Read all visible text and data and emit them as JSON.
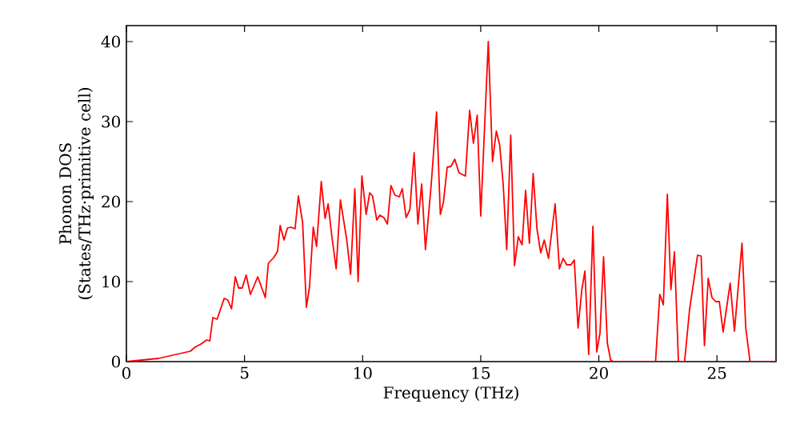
{
  "chart_data": {
    "type": "line",
    "xlabel": "Frequency (THz)",
    "ylabel": "Phonon DOS (States/THz·primitive cell)",
    "xlim": [
      0,
      27.5
    ],
    "ylim": [
      0,
      42
    ],
    "xticks": [
      0,
      5,
      10,
      15,
      20,
      25
    ],
    "yticks": [
      0,
      10,
      20,
      30,
      40
    ],
    "marker": "none",
    "line_style": "solid",
    "series": [
      {
        "color": "#ff0000",
        "x": [
          0,
          1.36,
          2.26,
          2.71,
          2.9,
          3.16,
          3.39,
          3.53,
          3.66,
          3.84,
          4.14,
          4.29,
          4.45,
          4.61,
          4.75,
          4.9,
          5.07,
          5.25,
          5.56,
          5.88,
          6.01,
          6.24,
          6.4,
          6.51,
          6.67,
          6.82,
          6.96,
          7.14,
          7.28,
          7.46,
          7.62,
          7.75,
          7.91,
          8.05,
          8.25,
          8.41,
          8.54,
          8.7,
          8.88,
          9.06,
          9.33,
          9.49,
          9.67,
          9.81,
          9.97,
          10.15,
          10.3,
          10.42,
          10.6,
          10.73,
          10.9,
          11.05,
          11.2,
          11.37,
          11.55,
          11.68,
          11.84,
          12.0,
          12.18,
          12.34,
          12.5,
          12.66,
          12.9,
          13.13,
          13.29,
          13.42,
          13.58,
          13.74,
          13.9,
          14.08,
          14.35,
          14.53,
          14.69,
          14.85,
          15.0,
          15.32,
          15.5,
          15.66,
          15.8,
          15.95,
          16.1,
          16.27,
          16.43,
          16.59,
          16.75,
          16.9,
          17.06,
          17.22,
          17.38,
          17.54,
          17.69,
          17.87,
          18.15,
          18.33,
          18.49,
          18.64,
          18.82,
          18.96,
          19.12,
          19.28,
          19.41,
          19.57,
          19.75,
          19.91,
          20.05,
          20.2,
          20.36,
          20.5,
          20.6,
          22.4,
          22.58,
          22.73,
          22.9,
          23.05,
          23.2,
          23.37,
          23.63,
          23.84,
          24.18,
          24.33,
          24.47,
          24.63,
          24.79,
          24.95,
          25.1,
          25.26,
          25.56,
          25.74,
          26.06,
          26.22,
          26.4,
          27.5
        ],
        "values": [
          0,
          0.4,
          1,
          1.3,
          1.8,
          2.2,
          2.7,
          2.6,
          5.5,
          5.3,
          7.9,
          7.7,
          6.6,
          10.6,
          9.2,
          9.2,
          10.8,
          8.4,
          10.6,
          8.0,
          12.3,
          13,
          13.8,
          17,
          15.2,
          16.7,
          16.8,
          16.6,
          20.7,
          17.4,
          6.8,
          9.3,
          16.8,
          14.4,
          22.5,
          17.9,
          19.7,
          15.6,
          11.6,
          20.2,
          15.2,
          10.9,
          21.6,
          10,
          23.2,
          18.4,
          21.1,
          20.7,
          17.7,
          18.3,
          18,
          17.2,
          22,
          20.8,
          20.6,
          21.6,
          18,
          19,
          26.1,
          17.2,
          22.2,
          14,
          22,
          31.2,
          18.4,
          19.9,
          24.3,
          24.4,
          25.3,
          23.6,
          23.2,
          31.4,
          27.3,
          30.8,
          18.2,
          40,
          25,
          28.8,
          27.1,
          22.2,
          14,
          28.3,
          12,
          15.6,
          14.6,
          21.4,
          14.8,
          23.5,
          16.6,
          13.6,
          15.2,
          12.9,
          19.7,
          11.6,
          12.9,
          12.1,
          12.1,
          12.7,
          4.2,
          9,
          11.3,
          0.9,
          16.9,
          1.2,
          3.6,
          13.1,
          2.3,
          0.2,
          0,
          0,
          8.4,
          7.1,
          20.9,
          9,
          13.7,
          0,
          0,
          6.5,
          13.3,
          13.2,
          2,
          10.4,
          8,
          7.5,
          7.5,
          3.7,
          9.8,
          3.8,
          14.8,
          4.2,
          0,
          0
        ]
      }
    ]
  }
}
